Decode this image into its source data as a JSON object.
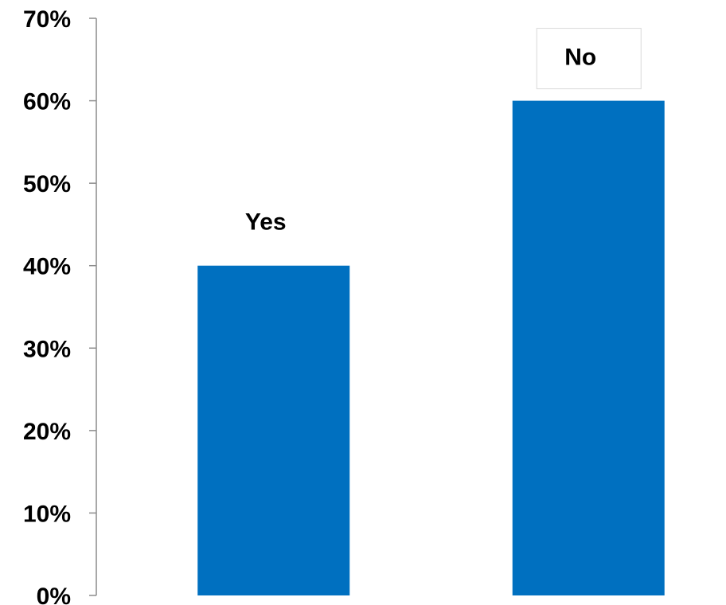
{
  "chart_data": {
    "type": "bar",
    "categories": [
      "Yes",
      "No"
    ],
    "values": [
      40,
      60
    ],
    "ylim": [
      0,
      70
    ],
    "yticks": [
      0,
      10,
      20,
      30,
      40,
      50,
      60,
      70
    ],
    "ytick_labels": [
      "0%",
      "10%",
      "20%",
      "30%",
      "40%",
      "50%",
      "60%",
      "70%"
    ],
    "title": "",
    "xlabel": "",
    "ylabel": "",
    "bar_color": "#0070c0",
    "label_box_border": "#d9d9d9",
    "grid": false,
    "legend": false
  }
}
